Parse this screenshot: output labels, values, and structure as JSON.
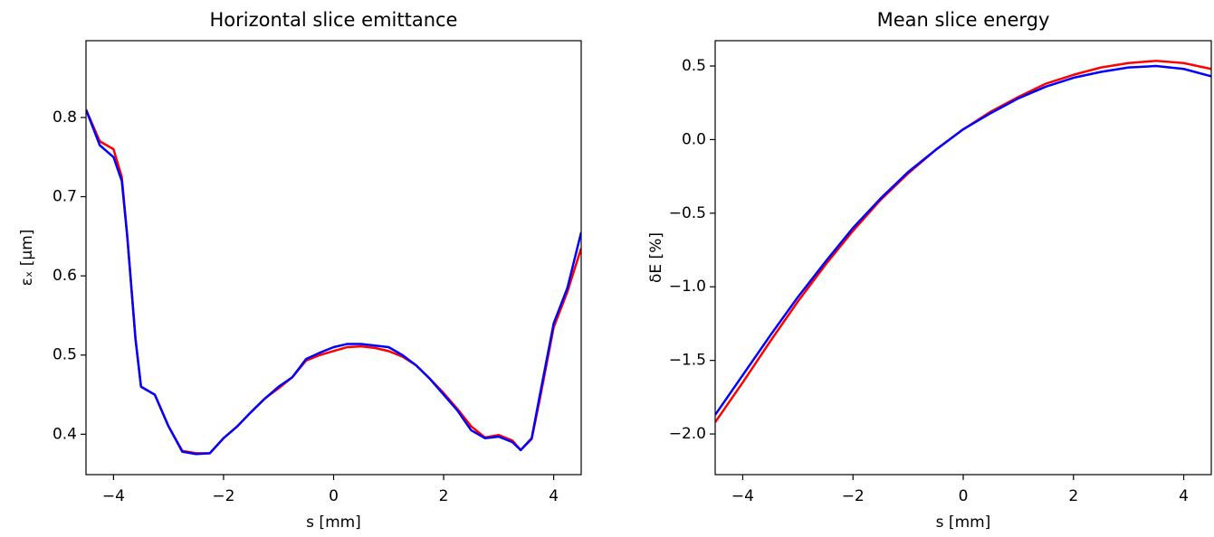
{
  "chart_data": [
    {
      "type": "line",
      "title": "Horizontal slice emittance",
      "xlabel": "s [mm]",
      "ylabel": "εₓ [μm]",
      "x": [
        -4.5,
        -4.25,
        -4.0,
        -3.85,
        -3.75,
        -3.6,
        -3.5,
        -3.25,
        -3.0,
        -2.75,
        -2.5,
        -2.25,
        -2.0,
        -1.75,
        -1.5,
        -1.25,
        -1.0,
        -0.75,
        -0.5,
        -0.25,
        0,
        0.25,
        0.5,
        0.75,
        1.0,
        1.25,
        1.5,
        1.75,
        2.0,
        2.25,
        2.5,
        2.75,
        3.0,
        3.25,
        3.4,
        3.6,
        3.75,
        4.0,
        4.25,
        4.5
      ],
      "series": [
        {
          "color": "#ff0000",
          "values": [
            0.81,
            0.77,
            0.76,
            0.725,
            0.65,
            0.52,
            0.46,
            0.45,
            0.41,
            0.379,
            0.376,
            0.376,
            0.395,
            0.41,
            0.428,
            0.445,
            0.458,
            0.472,
            0.493,
            0.5,
            0.505,
            0.51,
            0.511,
            0.509,
            0.505,
            0.498,
            0.487,
            0.47,
            0.452,
            0.432,
            0.41,
            0.396,
            0.399,
            0.392,
            0.38,
            0.394,
            0.445,
            0.535,
            0.58,
            0.635
          ]
        },
        {
          "color": "#0000ff",
          "values": [
            0.81,
            0.765,
            0.75,
            0.72,
            0.65,
            0.52,
            0.46,
            0.45,
            0.41,
            0.378,
            0.375,
            0.376,
            0.395,
            0.41,
            0.428,
            0.445,
            0.46,
            0.472,
            0.495,
            0.503,
            0.51,
            0.514,
            0.514,
            0.512,
            0.51,
            0.5,
            0.487,
            0.47,
            0.45,
            0.43,
            0.405,
            0.395,
            0.397,
            0.39,
            0.38,
            0.395,
            0.45,
            0.54,
            0.585,
            0.655
          ]
        }
      ],
      "xlim": [
        -4.5,
        4.5
      ],
      "ylim": [
        0.349,
        0.897
      ],
      "xticks": [
        {
          "value": -4,
          "label": "−4"
        },
        {
          "value": -2,
          "label": "−2"
        },
        0,
        2,
        4
      ],
      "yticks": [
        0.4,
        0.5,
        0.6,
        0.7,
        0.8
      ]
    },
    {
      "type": "line",
      "title": "Mean slice energy",
      "xlabel": "s [mm]",
      "ylabel": "δE [%]",
      "x": [
        -4.5,
        -4.0,
        -3.5,
        -3.0,
        -2.5,
        -2.0,
        -1.5,
        -1.0,
        -0.5,
        0,
        0.5,
        1.0,
        1.5,
        2.0,
        2.5,
        3.0,
        3.5,
        4.0,
        4.5
      ],
      "series": [
        {
          "color": "#ff0000",
          "values": [
            -1.92,
            -1.65,
            -1.37,
            -1.1,
            -0.85,
            -0.62,
            -0.41,
            -0.23,
            -0.07,
            0.07,
            0.19,
            0.29,
            0.38,
            0.44,
            0.49,
            0.52,
            0.535,
            0.52,
            0.48
          ]
        },
        {
          "color": "#0000ff",
          "values": [
            -1.87,
            -1.6,
            -1.33,
            -1.07,
            -0.83,
            -0.6,
            -0.4,
            -0.22,
            -0.07,
            0.07,
            0.18,
            0.28,
            0.36,
            0.42,
            0.46,
            0.49,
            0.5,
            0.48,
            0.43
          ]
        }
      ],
      "xlim": [
        -4.5,
        4.5
      ],
      "ylim": [
        -2.276,
        0.672
      ],
      "xticks": [
        {
          "value": -4,
          "label": "−4"
        },
        {
          "value": -2,
          "label": "−2"
        },
        0,
        2,
        4
      ],
      "yticks": [
        {
          "value": -2,
          "label": "−2.0"
        },
        {
          "value": -1.5,
          "label": "−1.5"
        },
        {
          "value": -1,
          "label": "−1.0"
        },
        {
          "value": -0.5,
          "label": "−0.5"
        },
        {
          "value": 0,
          "label": "0.0"
        },
        {
          "value": 0.5,
          "label": "0.5"
        }
      ]
    }
  ]
}
